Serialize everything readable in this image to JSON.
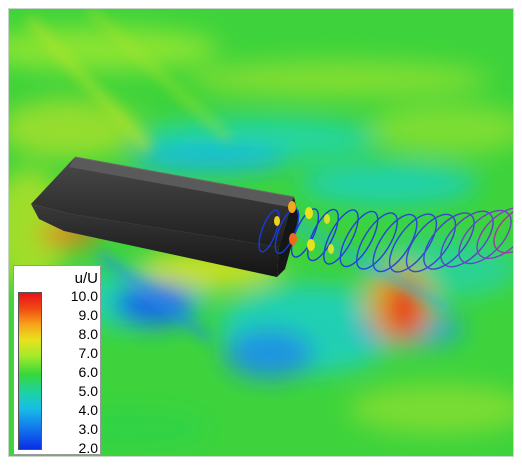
{
  "legend": {
    "title": "u/U",
    "ticks": [
      "10.0",
      "9.0",
      "8.0",
      "7.0",
      "6.0",
      "5.0",
      "4.0",
      "3.0",
      "2.0"
    ],
    "colors": {
      "max": "#e8101a",
      "mid": "#38d83a",
      "min": "#0a2ee6"
    }
  },
  "scene": {
    "background_color": "#3fd23c",
    "hull_color": "#2c2c2c",
    "vortex_color": "#2a43d6"
  }
}
